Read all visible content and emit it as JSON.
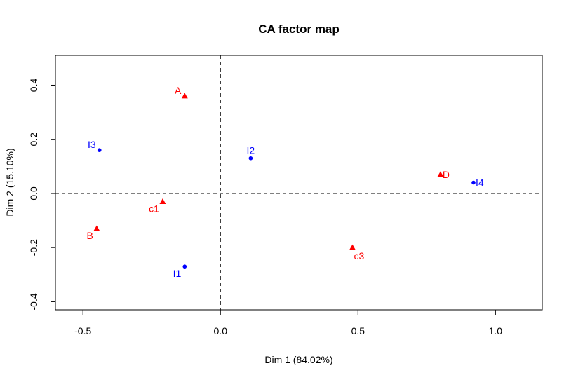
{
  "chart_data": {
    "type": "scatter",
    "title": "CA factor map",
    "xlabel": "Dim 1 (84.02%)",
    "ylabel": "Dim 2 (15.10%)",
    "xlim": [
      -0.6,
      1.17
    ],
    "ylim": [
      -0.43,
      0.51
    ],
    "xticks": [
      -0.5,
      0.0,
      0.5,
      1.0
    ],
    "xtick_labels": [
      "-0.5",
      "0.0",
      "0.5",
      "1.0"
    ],
    "yticks": [
      -0.4,
      -0.2,
      0.0,
      0.2,
      0.4
    ],
    "ytick_labels": [
      "-0.4",
      "-0.2",
      "0.0",
      "0.2",
      "0.4"
    ],
    "grid": false,
    "reference_lines": {
      "x": 0,
      "y": 0,
      "style": "dashed"
    },
    "series": [
      {
        "marker": "circle",
        "color": "#0000ff",
        "points": [
          {
            "label": "I1",
            "x": -0.13,
            "y": -0.27,
            "label_pos": "bottom-left"
          },
          {
            "label": "I2",
            "x": 0.11,
            "y": 0.13,
            "label_pos": "top"
          },
          {
            "label": "I3",
            "x": -0.44,
            "y": 0.16,
            "label_pos": "top-left"
          },
          {
            "label": "I4",
            "x": 0.92,
            "y": 0.04,
            "label_pos": "right"
          }
        ]
      },
      {
        "marker": "triangle",
        "color": "#ff0000",
        "points": [
          {
            "label": "A",
            "x": -0.13,
            "y": 0.36,
            "label_pos": "top-left"
          },
          {
            "label": "B",
            "x": -0.45,
            "y": -0.13,
            "label_pos": "bottom-left"
          },
          {
            "label": "c1",
            "x": -0.21,
            "y": -0.03,
            "label_pos": "bottom-left"
          },
          {
            "label": "c3",
            "x": 0.48,
            "y": -0.2,
            "label_pos": "bottom-right"
          },
          {
            "label": "D",
            "x": 0.8,
            "y": 0.07,
            "label_pos": "right"
          }
        ]
      }
    ]
  }
}
